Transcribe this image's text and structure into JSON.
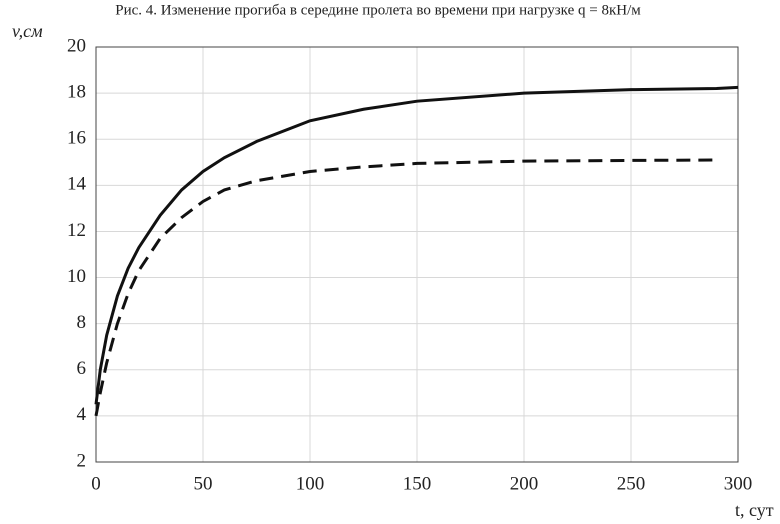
{
  "chart_data": {
    "type": "line",
    "title": "Рис. 4. Изменение прогиба в середине пролета во времени при нагрузке q = 8кН/м",
    "y_label": "v,см",
    "x_label": "t, сут",
    "x": [
      0,
      2,
      5,
      10,
      15,
      20,
      30,
      40,
      50,
      60,
      75,
      100,
      125,
      150,
      200,
      250,
      290,
      300
    ],
    "series": [
      {
        "color": "#111111",
        "line_style": "solid",
        "values": [
          4.5,
          6.0,
          7.5,
          9.2,
          10.4,
          11.3,
          12.7,
          13.8,
          14.6,
          15.2,
          15.9,
          16.8,
          17.3,
          17.65,
          18.0,
          18.15,
          18.2,
          18.25
        ]
      },
      {
        "color": "#111111",
        "line_style": "dashed",
        "values": [
          4.0,
          5.0,
          6.3,
          8.0,
          9.3,
          10.3,
          11.7,
          12.6,
          13.3,
          13.8,
          14.2,
          14.6,
          14.8,
          14.95,
          15.05,
          15.08,
          15.1,
          null
        ]
      }
    ],
    "xlim": [
      0,
      300
    ],
    "xticks": [
      0,
      50,
      100,
      150,
      200,
      250,
      300
    ],
    "ylim": [
      2,
      20
    ],
    "yticks": [
      2,
      4,
      6,
      8,
      10,
      12,
      14,
      16,
      18,
      20
    ],
    "grid": true
  }
}
